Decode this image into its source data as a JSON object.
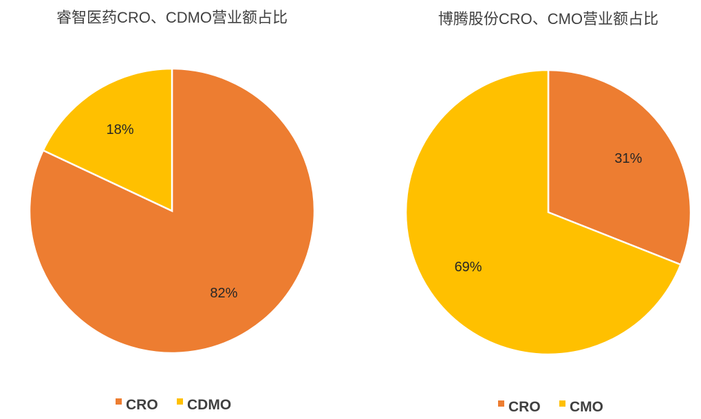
{
  "chart_data": [
    {
      "type": "pie",
      "title": "睿智医药CRO、CDMO营业额占比",
      "categories": [
        "CRO",
        "CDMO"
      ],
      "values": [
        82,
        18
      ],
      "labels": [
        "82%",
        "18%"
      ],
      "colors": [
        "#ED7D31",
        "#FFC000"
      ],
      "legend": "bottom"
    },
    {
      "type": "pie",
      "title": "博腾股份CRO、CMO营业额占比",
      "categories": [
        "CRO",
        "CMO"
      ],
      "values": [
        31,
        69
      ],
      "labels": [
        "31%",
        "69%"
      ],
      "colors": [
        "#ED7D31",
        "#FFC000"
      ],
      "legend": "bottom"
    }
  ]
}
